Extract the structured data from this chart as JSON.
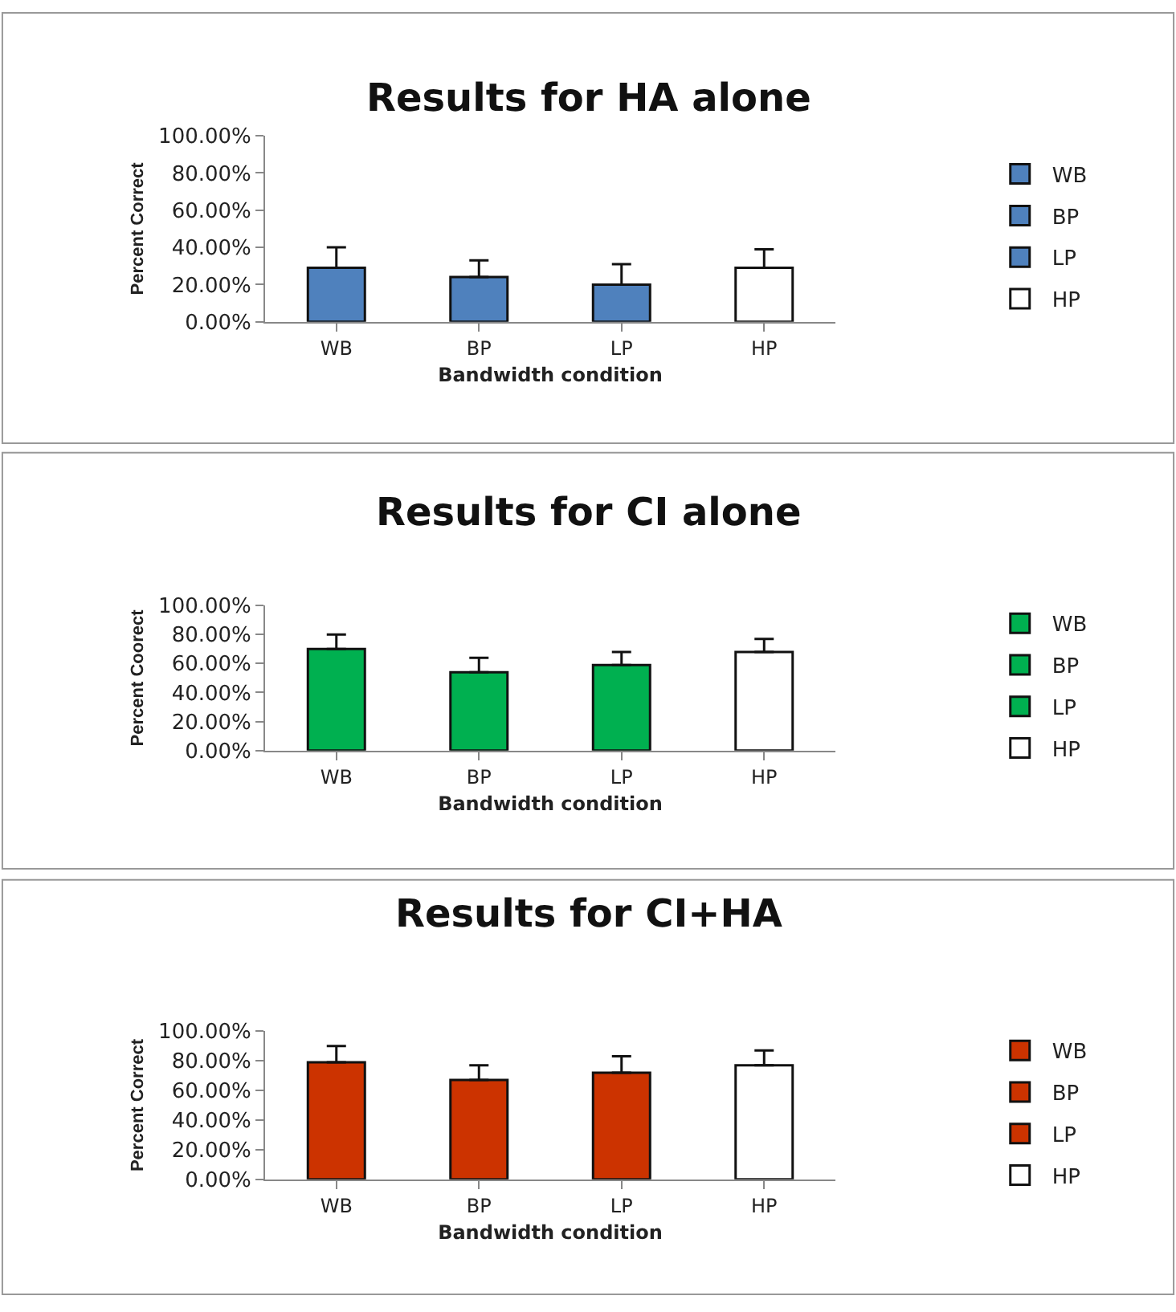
{
  "chart_data": [
    {
      "type": "bar",
      "title": "Results for HA alone",
      "xlabel": "Bandwidth condition",
      "ylabel": "Percent Correct",
      "categories": [
        "WB",
        "BP",
        "LP",
        "HP"
      ],
      "ylim": [
        0,
        100
      ],
      "yticks": [
        {
          "value": 0,
          "label": "0.00%"
        },
        {
          "value": 20,
          "label": "20.00%"
        },
        {
          "value": 40,
          "label": "40.00%"
        },
        {
          "value": 60,
          "label": "60.00%"
        },
        {
          "value": 80,
          "label": "80.00%"
        },
        {
          "value": 100,
          "label": "100.00%"
        }
      ],
      "legend": "right",
      "grid": false,
      "series": [
        {
          "name": "WB",
          "color": "#4f81bd",
          "values": [
            29,
            null,
            null,
            null
          ],
          "errors": [
            [
              29,
              40
            ],
            null,
            null,
            null
          ]
        },
        {
          "name": "BP",
          "color": "#4f81bd",
          "values": [
            null,
            24,
            null,
            null
          ],
          "errors": [
            null,
            [
              24,
              33
            ],
            null,
            null
          ]
        },
        {
          "name": "LP",
          "color": "#4f81bd",
          "values": [
            null,
            null,
            20,
            null
          ],
          "errors": [
            null,
            null,
            [
              20,
              31
            ],
            null
          ]
        },
        {
          "name": "HP",
          "color": "#ffffff",
          "values": [
            null,
            null,
            null,
            29
          ],
          "errors": [
            null,
            null,
            null,
            [
              29,
              39
            ]
          ]
        }
      ]
    },
    {
      "type": "bar",
      "title": "Results for CI alone",
      "xlabel": "Bandwidth condition",
      "ylabel": "Percent Coorect",
      "categories": [
        "WB",
        "BP",
        "LP",
        "HP"
      ],
      "ylim": [
        0,
        100
      ],
      "yticks": [
        {
          "value": 0,
          "label": "0.00%"
        },
        {
          "value": 20,
          "label": "20.00%"
        },
        {
          "value": 40,
          "label": "40.00%"
        },
        {
          "value": 60,
          "label": "60.00%"
        },
        {
          "value": 80,
          "label": "80.00%"
        },
        {
          "value": 100,
          "label": "100.00%"
        }
      ],
      "legend": "right",
      "grid": false,
      "series": [
        {
          "name": "WB",
          "color": "#00b050",
          "values": [
            70,
            null,
            null,
            null
          ],
          "errors": [
            [
              70,
              80
            ],
            null,
            null,
            null
          ]
        },
        {
          "name": "BP",
          "color": "#00b050",
          "values": [
            null,
            54,
            null,
            null
          ],
          "errors": [
            null,
            [
              54,
              64
            ],
            null,
            null
          ]
        },
        {
          "name": "LP",
          "color": "#00b050",
          "values": [
            null,
            null,
            59,
            null
          ],
          "errors": [
            null,
            null,
            [
              59,
              68
            ],
            null
          ]
        },
        {
          "name": "HP",
          "color": "#ffffff",
          "values": [
            null,
            null,
            null,
            68
          ],
          "errors": [
            null,
            null,
            null,
            [
              68,
              77
            ]
          ]
        }
      ]
    },
    {
      "type": "bar",
      "title": "Results for CI+HA",
      "xlabel": "Bandwidth condition",
      "ylabel": "Percent Correct",
      "categories": [
        "WB",
        "BP",
        "LP",
        "HP"
      ],
      "ylim": [
        0,
        100
      ],
      "yticks": [
        {
          "value": 0,
          "label": "0.00%"
        },
        {
          "value": 20,
          "label": "20.00%"
        },
        {
          "value": 40,
          "label": "40.00%"
        },
        {
          "value": 60,
          "label": "60.00%"
        },
        {
          "value": 80,
          "label": "80.00%"
        },
        {
          "value": 100,
          "label": "100.00%"
        }
      ],
      "legend": "right",
      "grid": false,
      "series": [
        {
          "name": "WB",
          "color": "#cc3300",
          "values": [
            79,
            null,
            null,
            null
          ],
          "errors": [
            [
              79,
              90
            ],
            null,
            null,
            null
          ]
        },
        {
          "name": "BP",
          "color": "#cc3300",
          "values": [
            null,
            67,
            null,
            null
          ],
          "errors": [
            null,
            [
              67,
              77
            ],
            null,
            null
          ]
        },
        {
          "name": "LP",
          "color": "#cc3300",
          "values": [
            null,
            null,
            72,
            null
          ],
          "errors": [
            null,
            null,
            [
              72,
              83
            ],
            null
          ]
        },
        {
          "name": "HP",
          "color": "#ffffff",
          "values": [
            null,
            null,
            null,
            77
          ],
          "errors": [
            null,
            null,
            null,
            [
              77,
              87
            ]
          ]
        }
      ]
    }
  ]
}
